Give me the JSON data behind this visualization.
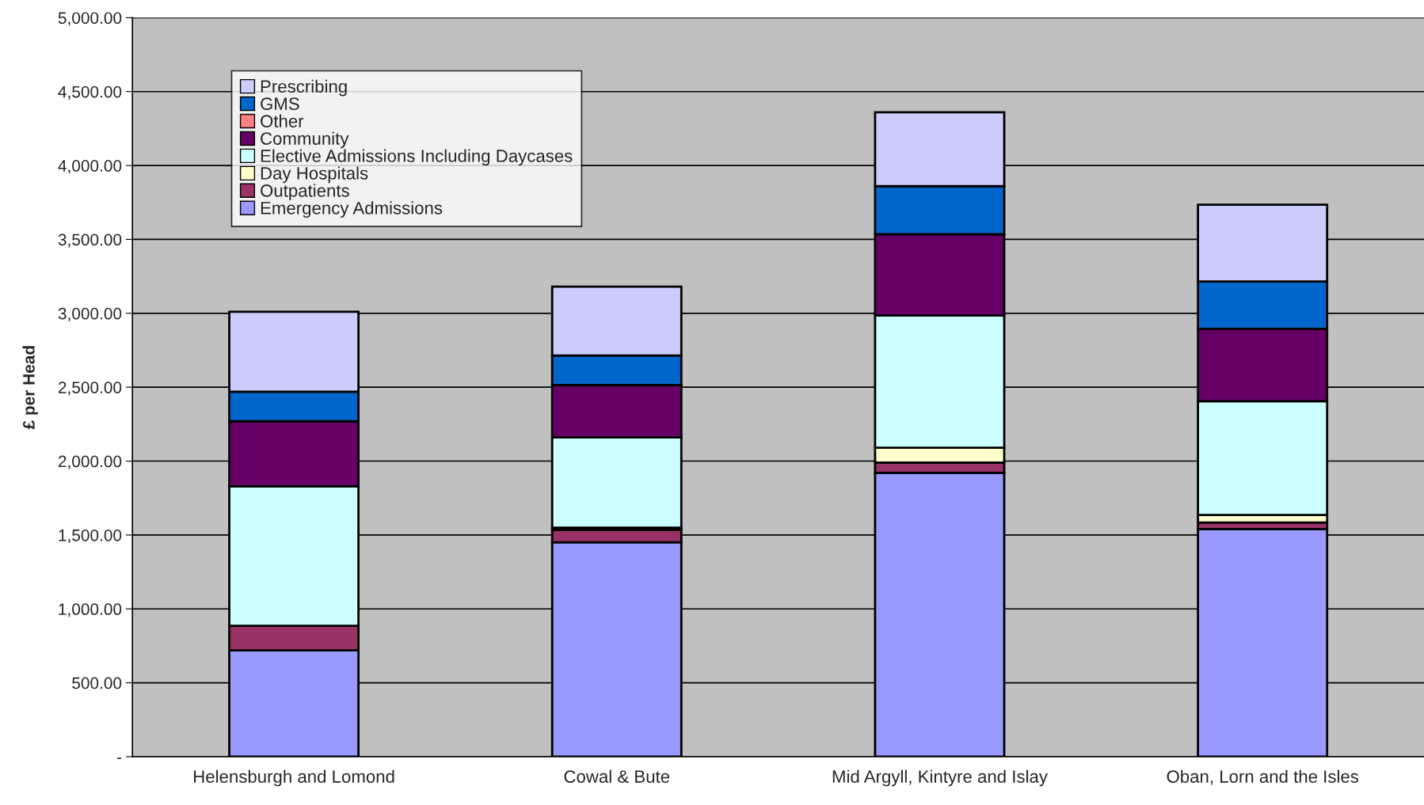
{
  "chart_data": {
    "type": "bar",
    "stacked": true,
    "ylabel": "£ per Head",
    "categories": [
      "Helensburgh and Lomond",
      "Cowal & Bute",
      "Mid Argyll, Kintyre and Islay",
      "Oban, Lorn and the Isles"
    ],
    "series": [
      {
        "name": "Emergency Admissions",
        "color": "#9999ff",
        "values": [
          720,
          1450,
          1920,
          1540
        ]
      },
      {
        "name": "Outpatients",
        "color": "#993366",
        "values": [
          165,
          85,
          70,
          45
        ]
      },
      {
        "name": "Day Hospitals",
        "color": "#ffffcc",
        "values": [
          0,
          15,
          100,
          50
        ]
      },
      {
        "name": "Elective Admissions Including Daycases",
        "color": "#ccffff",
        "values": [
          945,
          610,
          895,
          770
        ]
      },
      {
        "name": "Community",
        "color": "#660066",
        "values": [
          440,
          355,
          550,
          490
        ]
      },
      {
        "name": "Other",
        "color": "#ff8080",
        "values": [
          0,
          0,
          0,
          0
        ]
      },
      {
        "name": "GMS",
        "color": "#0066cc",
        "values": [
          200,
          200,
          325,
          320
        ]
      },
      {
        "name": "Prescribing",
        "color": "#ccccff",
        "values": [
          540,
          465,
          500,
          520
        ]
      }
    ],
    "ylim": [
      0,
      5000
    ],
    "yticks": [
      {
        "value": 0,
        "label": "-"
      },
      {
        "value": 500,
        "label": "500.00"
      },
      {
        "value": 1000,
        "label": "1,000.00"
      },
      {
        "value": 1500,
        "label": "1,500.00"
      },
      {
        "value": 2000,
        "label": "2,000.00"
      },
      {
        "value": 2500,
        "label": "2,500.00"
      },
      {
        "value": 3000,
        "label": "3,000.00"
      },
      {
        "value": 3500,
        "label": "3,500.00"
      },
      {
        "value": 4000,
        "label": "4,000.00"
      },
      {
        "value": 4500,
        "label": "4,500.00"
      },
      {
        "value": 5000,
        "label": "5,000.00"
      }
    ],
    "grid": "y",
    "legend": "top left"
  }
}
